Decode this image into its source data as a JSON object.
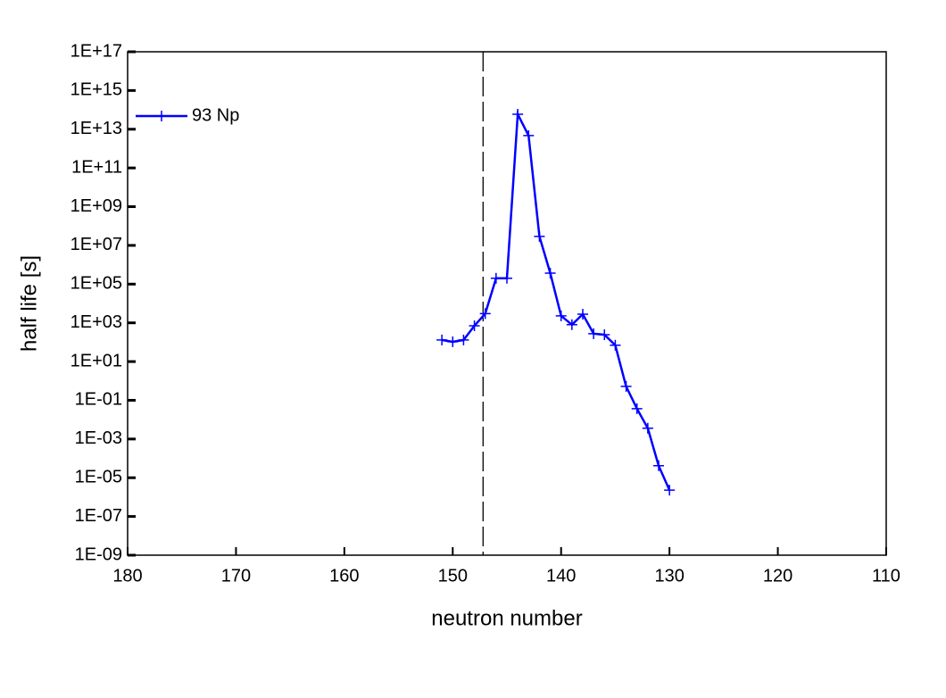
{
  "chart_data": {
    "type": "line",
    "xlabel": "neutron number",
    "ylabel": "half life [s]",
    "x": [
      151,
      150,
      149,
      148,
      147,
      146,
      145,
      144,
      143,
      142,
      141,
      140,
      139,
      138,
      137,
      136,
      135,
      134,
      133,
      132,
      131,
      130
    ],
    "series": [
      {
        "name": "93 Np",
        "color": "#0000ff",
        "values": [
          130,
          105,
          130,
          700,
          3000,
          200000,
          200000,
          59000000000000.0,
          4700000000000.0,
          29000000.0,
          370000,
          2300,
          800,
          2800,
          275,
          245,
          70,
          0.52,
          0.037,
          0.0036,
          4.2e-05,
          2.3e-06
        ]
      }
    ],
    "xlim": [
      180,
      110
    ],
    "xticks": [
      180,
      170,
      160,
      150,
      140,
      130,
      120,
      110
    ],
    "ylim": [
      1e-09,
      1e+17
    ],
    "yticks": [
      {
        "value": 1e-09,
        "label": "1E-09"
      },
      {
        "value": 1e-07,
        "label": "1E-07"
      },
      {
        "value": 1e-05,
        "label": "1E-05"
      },
      {
        "value": 0.001,
        "label": "1E-03"
      },
      {
        "value": 0.1,
        "label": "1E-01"
      },
      {
        "value": 10,
        "label": "1E+01"
      },
      {
        "value": 1000,
        "label": "1E+03"
      },
      {
        "value": 100000,
        "label": "1E+05"
      },
      {
        "value": 10000000.0,
        "label": "1E+07"
      },
      {
        "value": 1000000000.0,
        "label": "1E+09"
      },
      {
        "value": 100000000000.0,
        "label": "1E+11"
      },
      {
        "value": 10000000000000.0,
        "label": "1E+13"
      },
      {
        "value": 1000000000000000.0,
        "label": "1E+15"
      },
      {
        "value": 1e+17,
        "label": "1E+17"
      }
    ],
    "log_y": true,
    "vline": 147.2,
    "legend": "upper left"
  }
}
